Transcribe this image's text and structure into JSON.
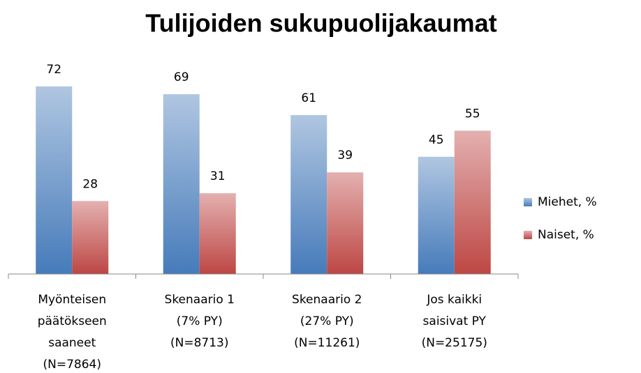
{
  "chart_data": {
    "type": "bar",
    "title": "Tulijoiden sukupuolijakaumat",
    "categories": [
      [
        "Myönteisen",
        "päätökseen",
        "saaneet",
        "(N=7864)"
      ],
      [
        "Skenaario 1",
        "(7% PY)",
        "(N=8713)"
      ],
      [
        "Skenaario 2",
        "(27% PY)",
        "(N=11261)"
      ],
      [
        "Jos kaikki",
        "saisivat PY",
        "(N=25175)"
      ]
    ],
    "series": [
      {
        "name": "Miehet, %",
        "color": "#4f81bd",
        "values": [
          72,
          69,
          61,
          45
        ]
      },
      {
        "name": "Naiset, %",
        "color": "#c0504d",
        "values": [
          28,
          31,
          39,
          55
        ]
      }
    ],
    "ylim": [
      0,
      80
    ],
    "legend": "right"
  }
}
